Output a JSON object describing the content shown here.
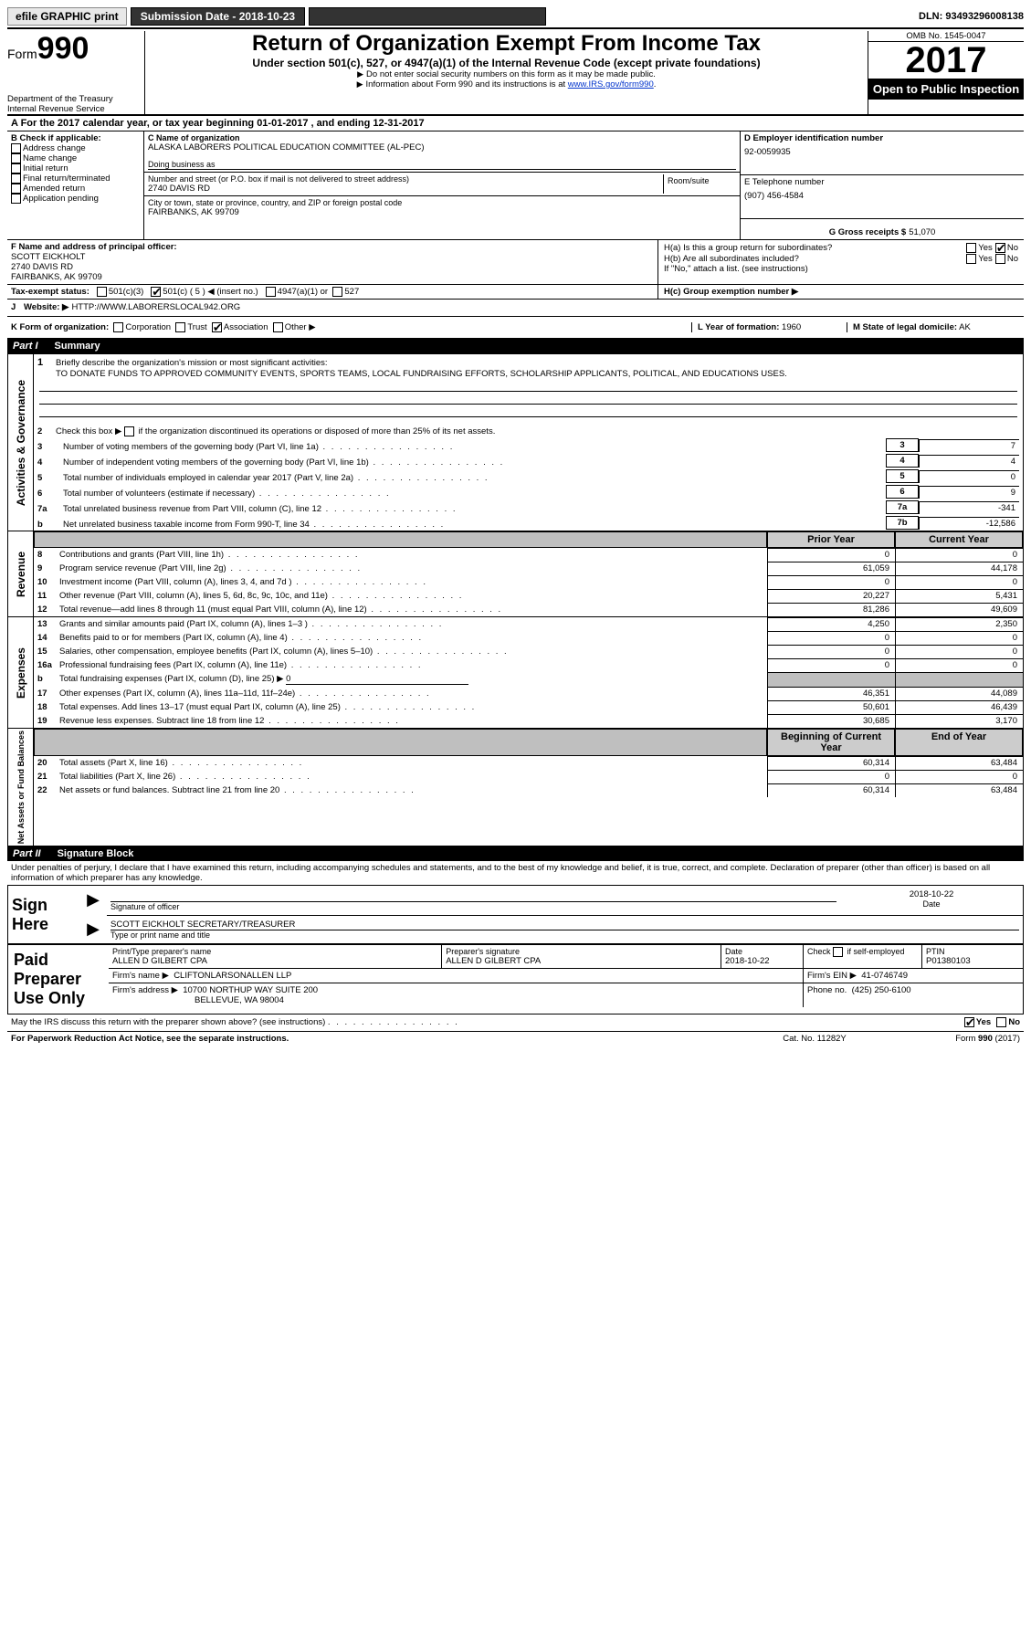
{
  "topbar": {
    "efile": "efile GRAPHIC print",
    "submission_label": "Submission Date - 2018-10-23",
    "dln": "DLN: 93493296008138"
  },
  "header": {
    "form_prefix": "Form",
    "form_no": "990",
    "dept1": "Department of the Treasury",
    "dept2": "Internal Revenue Service",
    "title": "Return of Organization Exempt From Income Tax",
    "subtitle": "Under section 501(c), 527, or 4947(a)(1) of the Internal Revenue Code (except private foundations)",
    "note1": "Do not enter social security numbers on this form as it may be made public.",
    "note2_pre": "Information about Form 990 and its instructions is at ",
    "note2_link": "www.IRS.gov/form990",
    "omb": "OMB No. 1545-0047",
    "year": "2017",
    "open": "Open to Public Inspection"
  },
  "line_a": "A For the 2017 calendar year, or tax year beginning 01-01-2017    , and ending 12-31-2017",
  "check_b_label": "B Check if applicable:",
  "checks_b": [
    "Address change",
    "Name change",
    "Initial return",
    "Final return/terminated",
    "Amended return",
    "Application pending"
  ],
  "c": {
    "name_label": "C Name of organization",
    "name": "ALASKA LABORERS POLITICAL EDUCATION COMMITTEE (AL-PEC)",
    "dba_label": "Doing business as",
    "addr_label": "Number and street (or P.O. box if mail is not delivered to street address)",
    "room_label": "Room/suite",
    "addr": "2740 DAVIS RD",
    "city_label": "City or town, state or province, country, and ZIP or foreign postal code",
    "city": "FAIRBANKS, AK  99709"
  },
  "d": {
    "label": "D Employer identification number",
    "val": "92-0059935"
  },
  "e": {
    "label": "E Telephone number",
    "val": "(907) 456-4584"
  },
  "g": {
    "label": "G Gross receipts $",
    "val": "51,070"
  },
  "f": {
    "label": "F  Name and address of principal officer:",
    "name": "SCOTT EICKHOLT",
    "addr1": "2740 DAVIS RD",
    "addr2": "FAIRBANKS, AK  99709"
  },
  "h": {
    "a": "H(a)  Is this a group return for subordinates?",
    "b": "H(b)  Are all subordinates included?",
    "b_note": "If \"No,\" attach a list. (see instructions)",
    "c": "H(c)  Group exemption number ▶"
  },
  "i": {
    "label": "Tax-exempt status:",
    "o1": "501(c)(3)",
    "o2": "501(c) ( 5 ) ◀ (insert no.)",
    "o3": "4947(a)(1) or",
    "o4": "527"
  },
  "j": {
    "label": "J",
    "website_label": "Website: ▶",
    "website": "HTTP://WWW.LABORERSLOCAL942.ORG"
  },
  "k": {
    "label": "K Form of organization:",
    "opts": [
      "Corporation",
      "Trust",
      "Association",
      "Other ▶"
    ]
  },
  "l": {
    "label": "L Year of formation:",
    "val": "1960"
  },
  "m": {
    "label": "M State of legal domicile:",
    "val": "AK"
  },
  "part1": {
    "n": "Part I",
    "t": "Summary"
  },
  "summary": {
    "l1": "Briefly describe the organization's mission or most significant activities:",
    "l1_text": "TO DONATE FUNDS TO APPROVED COMMUNITY EVENTS, SPORTS TEAMS, LOCAL FUNDRAISING EFFORTS, SCHOLARSHIP APPLICANTS, POLITICAL, AND EDUCATIONS USES.",
    "l2": "Check this box ▶      if the organization discontinued its operations or disposed of more than 25% of its net assets.",
    "rows_a": [
      {
        "n": "3",
        "d": "Number of voting members of the governing body (Part VI, line 1a)",
        "box": "3",
        "v": "7"
      },
      {
        "n": "4",
        "d": "Number of independent voting members of the governing body (Part VI, line 1b)",
        "box": "4",
        "v": "4"
      },
      {
        "n": "5",
        "d": "Total number of individuals employed in calendar year 2017 (Part V, line 2a)",
        "box": "5",
        "v": "0"
      },
      {
        "n": "6",
        "d": "Total number of volunteers (estimate if necessary)",
        "box": "6",
        "v": "9"
      },
      {
        "n": "7a",
        "d": "Total unrelated business revenue from Part VIII, column (C), line 12",
        "box": "7a",
        "v": "-341"
      },
      {
        "n": "b",
        "d": "Net unrelated business taxable income from Form 990-T, line 34",
        "box": "7b",
        "v": "-12,586"
      }
    ],
    "col_prior": "Prior Year",
    "col_curr": "Current Year",
    "rev": [
      {
        "n": "8",
        "d": "Contributions and grants (Part VIII, line 1h)",
        "p": "0",
        "c": "0"
      },
      {
        "n": "9",
        "d": "Program service revenue (Part VIII, line 2g)",
        "p": "61,059",
        "c": "44,178"
      },
      {
        "n": "10",
        "d": "Investment income (Part VIII, column (A), lines 3, 4, and 7d )",
        "p": "0",
        "c": "0"
      },
      {
        "n": "11",
        "d": "Other revenue (Part VIII, column (A), lines 5, 6d, 8c, 9c, 10c, and 11e)",
        "p": "20,227",
        "c": "5,431"
      },
      {
        "n": "12",
        "d": "Total revenue—add lines 8 through 11 (must equal Part VIII, column (A), line 12)",
        "p": "81,286",
        "c": "49,609"
      }
    ],
    "exp": [
      {
        "n": "13",
        "d": "Grants and similar amounts paid (Part IX, column (A), lines 1–3 )",
        "p": "4,250",
        "c": "2,350"
      },
      {
        "n": "14",
        "d": "Benefits paid to or for members (Part IX, column (A), line 4)",
        "p": "0",
        "c": "0"
      },
      {
        "n": "15",
        "d": "Salaries, other compensation, employee benefits (Part IX, column (A), lines 5–10)",
        "p": "0",
        "c": "0"
      },
      {
        "n": "16a",
        "d": "Professional fundraising fees (Part IX, column (A), line 11e)",
        "p": "0",
        "c": "0"
      }
    ],
    "exp_b": "Total fundraising expenses (Part IX, column (D), line 25) ▶",
    "exp_b_val": "0",
    "exp2": [
      {
        "n": "17",
        "d": "Other expenses (Part IX, column (A), lines 11a–11d, 11f–24e)",
        "p": "46,351",
        "c": "44,089"
      },
      {
        "n": "18",
        "d": "Total expenses. Add lines 13–17 (must equal Part IX, column (A), line 25)",
        "p": "50,601",
        "c": "46,439"
      },
      {
        "n": "19",
        "d": "Revenue less expenses. Subtract line 18 from line 12",
        "p": "30,685",
        "c": "3,170"
      }
    ],
    "col_begin": "Beginning of Current Year",
    "col_end": "End of Year",
    "net": [
      {
        "n": "20",
        "d": "Total assets (Part X, line 16)",
        "p": "60,314",
        "c": "63,484"
      },
      {
        "n": "21",
        "d": "Total liabilities (Part X, line 26)",
        "p": "0",
        "c": "0"
      },
      {
        "n": "22",
        "d": "Net assets or fund balances. Subtract line 21 from line 20",
        "p": "60,314",
        "c": "63,484"
      }
    ]
  },
  "section_labels": {
    "a": "Activities & Governance",
    "r": "Revenue",
    "e": "Expenses",
    "n": "Net Assets or Fund Balances"
  },
  "part2": {
    "n": "Part II",
    "t": "Signature Block",
    "decl": "Under penalties of perjury, I declare that I have examined this return, including accompanying schedules and statements, and to the best of my knowledge and belief, it is true, correct, and complete. Declaration of preparer (other than officer) is based on all information of which preparer has any knowledge."
  },
  "sign": {
    "here": "Sign Here",
    "sig_label": "Signature of officer",
    "date_label": "Date",
    "date": "2018-10-22",
    "name": "SCOTT EICKHOLT SECRETARY/TREASURER",
    "name_label": "Type or print name and title"
  },
  "paid": {
    "label": "Paid Preparer Use Only",
    "prep_name_label": "Print/Type preparer's name",
    "prep_name": "ALLEN D GILBERT CPA",
    "prep_sig_label": "Preparer's signature",
    "prep_sig": "ALLEN D GILBERT CPA",
    "prep_date_label": "Date",
    "prep_date": "2018-10-22",
    "self_emp": "Check       if self-employed",
    "ptin_label": "PTIN",
    "ptin": "P01380103",
    "firm_name_label": "Firm's name    ▶",
    "firm_name": "CLIFTONLARSONALLEN LLP",
    "firm_ein_label": "Firm's EIN ▶",
    "firm_ein": "41-0746749",
    "firm_addr_label": "Firm's address ▶",
    "firm_addr1": "10700 NORTHUP WAY SUITE 200",
    "firm_addr2": "BELLEVUE, WA  98004",
    "phone_label": "Phone no.",
    "phone": "(425) 250-6100"
  },
  "footer": {
    "discuss": "May the IRS discuss this return with the preparer shown above? (see instructions)",
    "paperwork": "For Paperwork Reduction Act Notice, see the separate instructions.",
    "cat": "Cat. No. 11282Y",
    "form": "Form 990 (2017)"
  },
  "yesno": {
    "yes": "Yes",
    "no": "No"
  }
}
